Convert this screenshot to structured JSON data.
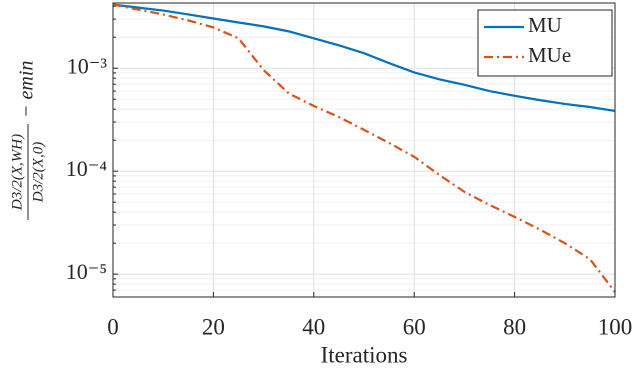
{
  "chart_data": {
    "type": "line",
    "x_label": "Iterations",
    "y_label": {
      "numerator": "D3/2(X,WH)",
      "denominator": "D3/2(X,0)",
      "suffix": "− emin"
    },
    "x": [
      0,
      5,
      10,
      15,
      20,
      25,
      30,
      35,
      40,
      45,
      50,
      55,
      60,
      65,
      70,
      75,
      80,
      85,
      90,
      95,
      100
    ],
    "series": [
      {
        "name": "MU",
        "color": "#0072bd",
        "dash": "solid",
        "values": [
          0.00415,
          0.00388,
          0.00363,
          0.00333,
          0.00304,
          0.00278,
          0.00255,
          0.00228,
          0.00195,
          0.00167,
          0.0014,
          0.00112,
          0.00091,
          0.00078,
          0.00069,
          0.0006,
          0.00054,
          0.00049,
          0.00045,
          0.00042,
          0.000385
        ]
      },
      {
        "name": "MUe",
        "color": "#d95319",
        "dash": "dashdot",
        "values": [
          0.00415,
          0.00371,
          0.00333,
          0.00291,
          0.00249,
          0.00195,
          0.00096,
          0.00057,
          0.00043,
          0.000336,
          0.000252,
          0.000188,
          0.000138,
          9.2e-05,
          6.3e-05,
          4.7e-05,
          3.6e-05,
          2.72e-05,
          2e-05,
          1.4e-05,
          6.7e-06
        ]
      }
    ],
    "xlim": [
      0,
      100
    ],
    "xticks": [
      0,
      20,
      40,
      60,
      80,
      100
    ],
    "ylim": [
      6e-06,
      0.0043
    ],
    "log_y": true,
    "yticks": [
      {
        "value": 1e-05,
        "label": "10⁻⁵"
      },
      {
        "value": 0.0001,
        "label": "10⁻⁴"
      },
      {
        "value": 0.001,
        "label": "10⁻³"
      }
    ],
    "yminorticks": [
      7e-06,
      8e-06,
      9e-06,
      2e-05,
      3e-05,
      4e-05,
      5e-05,
      6e-05,
      7e-05,
      8e-05,
      9e-05,
      0.0002,
      0.0003,
      0.0004,
      0.0005,
      0.0006,
      0.0007,
      0.0008,
      0.0009,
      0.002,
      0.003,
      0.004
    ],
    "grid": true,
    "legend": "upper right"
  }
}
